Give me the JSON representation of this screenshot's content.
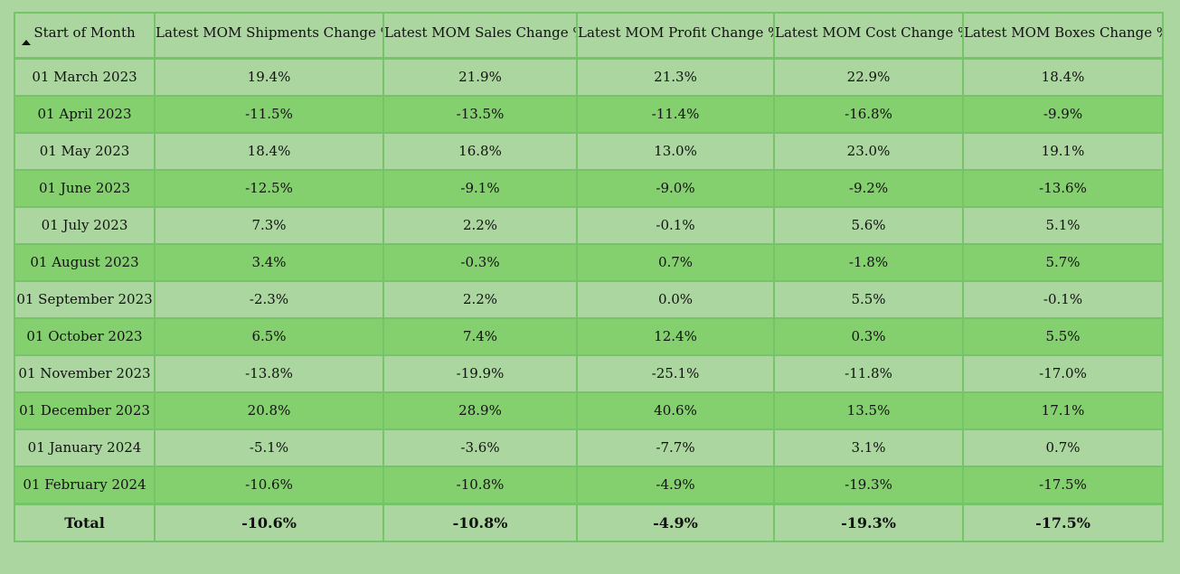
{
  "columns": [
    "Start of Month",
    "Latest MOM Shipments Change %",
    "Latest MOM Sales Change %",
    "Latest MOM Profit Change %",
    "Latest MOM Cost Change %",
    "Latest MOM Boxes Change %"
  ],
  "sort": {
    "column": "Start of Month",
    "direction": "ascending",
    "icon": "sort-ascending-icon"
  },
  "rows": [
    [
      "01 March 2023",
      "19.4%",
      "21.9%",
      "21.3%",
      "22.9%",
      "18.4%"
    ],
    [
      "01 April 2023",
      "-11.5%",
      "-13.5%",
      "-11.4%",
      "-16.8%",
      "-9.9%"
    ],
    [
      "01 May 2023",
      "18.4%",
      "16.8%",
      "13.0%",
      "23.0%",
      "19.1%"
    ],
    [
      "01 June 2023",
      "-12.5%",
      "-9.1%",
      "-9.0%",
      "-9.2%",
      "-13.6%"
    ],
    [
      "01 July 2023",
      "7.3%",
      "2.2%",
      "-0.1%",
      "5.6%",
      "5.1%"
    ],
    [
      "01 August 2023",
      "3.4%",
      "-0.3%",
      "0.7%",
      "-1.8%",
      "5.7%"
    ],
    [
      "01 September 2023",
      "-2.3%",
      "2.2%",
      "0.0%",
      "5.5%",
      "-0.1%"
    ],
    [
      "01 October 2023",
      "6.5%",
      "7.4%",
      "12.4%",
      "0.3%",
      "5.5%"
    ],
    [
      "01 November 2023",
      "-13.8%",
      "-19.9%",
      "-25.1%",
      "-11.8%",
      "-17.0%"
    ],
    [
      "01 December 2023",
      "20.8%",
      "28.9%",
      "40.6%",
      "13.5%",
      "17.1%"
    ],
    [
      "01 January 2024",
      "-5.1%",
      "-3.6%",
      "-7.7%",
      "3.1%",
      "0.7%"
    ],
    [
      "01 February 2024",
      "-10.6%",
      "-10.8%",
      "-4.9%",
      "-19.3%",
      "-17.5%"
    ]
  ],
  "total": [
    "Total",
    "-10.6%",
    "-10.8%",
    "-4.9%",
    "-19.3%",
    "-17.5%"
  ],
  "colors": {
    "background": "#acd6a0",
    "row_alt": "#84d06e",
    "border": "#76c468"
  }
}
